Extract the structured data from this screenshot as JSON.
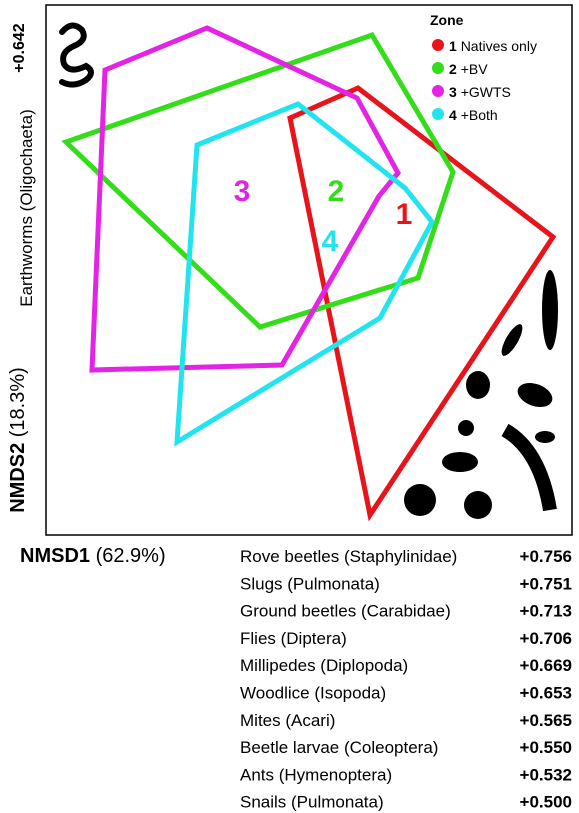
{
  "legend": {
    "title": "Zone",
    "items": [
      {
        "number": "1",
        "label": "Natives only"
      },
      {
        "number": "2",
        "label": "+BV"
      },
      {
        "number": "3",
        "label": "+GWTS"
      },
      {
        "number": "4",
        "label": "+Both"
      }
    ]
  },
  "plot_labels": [
    "1",
    "2",
    "3",
    "4"
  ],
  "y_axis": {
    "taxon": "Earthworms (Oligochaeta)",
    "loading": "+0.642",
    "name": "NMDS2",
    "variance": "(18.3%)"
  },
  "x_axis": {
    "name": "NMSD1",
    "variance": "(62.9%)"
  },
  "loadings": [
    {
      "taxon": "Rove beetles (Staphylinidae)",
      "value": "+0.756"
    },
    {
      "taxon": "Slugs (Pulmonata)",
      "value": "+0.751"
    },
    {
      "taxon": "Ground beetles (Carabidae)",
      "value": "+0.713"
    },
    {
      "taxon": "Flies (Diptera)",
      "value": "+0.706"
    },
    {
      "taxon": "Millipedes (Diplopoda)",
      "value": "+0.669"
    },
    {
      "taxon": "Woodlice (Isopoda)",
      "value": "+0.653"
    },
    {
      "taxon": "Mites (Acari)",
      "value": "+0.565"
    },
    {
      "taxon": "Beetle larvae (Coleoptera)",
      "value": "+0.550"
    },
    {
      "taxon": "Ants (Hymenoptera)",
      "value": "+0.532"
    },
    {
      "taxon": "Snails (Pulmonata)",
      "value": "+0.500"
    }
  ]
}
